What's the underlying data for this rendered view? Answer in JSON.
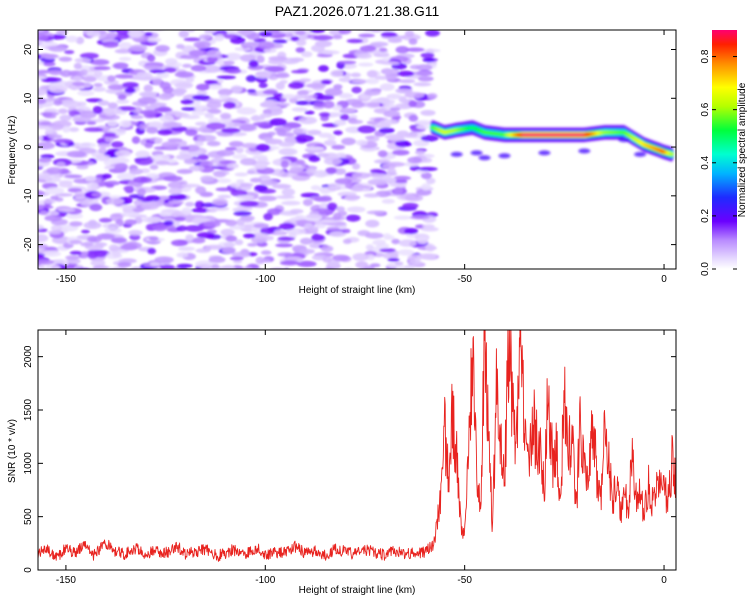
{
  "title": "PAZ1.2026.071.21.38.G11",
  "chart_data": [
    {
      "type": "heatmap",
      "title": "PAZ1.2026.071.21.38.G11",
      "xlabel": "Height of straight line (km)",
      "ylabel": "Frequency (Hz)",
      "xlim": [
        -157,
        3
      ],
      "ylim": [
        -25,
        24
      ],
      "xticks": [
        -150,
        -100,
        -50,
        0
      ],
      "yticks": [
        -20,
        -10,
        0,
        10,
        20
      ],
      "noise_region_x": [
        -157,
        -58
      ],
      "signal_ridge": {
        "x": [
          -58,
          -55,
          -52,
          -48,
          -45,
          -40,
          -35,
          -30,
          -25,
          -20,
          -15,
          -10,
          -5,
          0,
          2
        ],
        "freq": [
          4,
          3,
          3.5,
          4,
          3,
          2.5,
          2.5,
          2.5,
          2.5,
          2.5,
          3,
          3,
          0.5,
          -1,
          -1.5
        ],
        "amplitude": [
          0.55,
          0.65,
          0.6,
          0.5,
          0.55,
          0.55,
          0.9,
          0.9,
          0.9,
          0.9,
          0.6,
          0.55,
          0.7,
          0.8,
          0.6
        ]
      },
      "colorbar": {
        "label": "Normalized spectral amplitude",
        "range": [
          0,
          0.9
        ],
        "ticks": [
          0.0,
          0.2,
          0.4,
          0.6,
          0.8
        ],
        "tick_labels": [
          "0.0",
          "0.2",
          "0.4",
          "0.6",
          "0.8"
        ]
      }
    },
    {
      "type": "line",
      "xlabel": "Height of straight line (km)",
      "ylabel": "SNR (10 * v/v)",
      "xlim": [
        -157,
        3
      ],
      "ylim": [
        0,
        2250
      ],
      "xticks": [
        -150,
        -100,
        -50,
        0
      ],
      "yticks": [
        0,
        500,
        1000,
        1500,
        2000
      ],
      "series": [
        {
          "name": "SNR",
          "color": "#e8231f",
          "x": [
            -157,
            -155,
            -152,
            -150,
            -148,
            -145,
            -143,
            -140,
            -138,
            -135,
            -132,
            -130,
            -128,
            -125,
            -122,
            -120,
            -118,
            -115,
            -112,
            -110,
            -108,
            -105,
            -102,
            -100,
            -98,
            -95,
            -92,
            -90,
            -88,
            -85,
            -82,
            -80,
            -78,
            -75,
            -72,
            -70,
            -68,
            -65,
            -62,
            -60,
            -58,
            -57,
            -56,
            -55,
            -54,
            -53,
            -52,
            -51,
            -50,
            -49,
            -48,
            -47,
            -46,
            -45,
            -44,
            -43,
            -42,
            -41,
            -40,
            -39,
            -38,
            -37,
            -36,
            -35,
            -34,
            -33,
            -32,
            -31,
            -30,
            -29,
            -28,
            -27,
            -26,
            -25,
            -24,
            -23,
            -22,
            -21,
            -20,
            -19,
            -18,
            -17,
            -16,
            -15,
            -14,
            -13,
            -12,
            -11,
            -10,
            -9,
            -8,
            -7,
            -6,
            -5,
            -4,
            -3,
            -2,
            -1,
            0,
            1,
            2,
            3
          ],
          "y": [
            150,
            190,
            120,
            200,
            160,
            230,
            140,
            260,
            170,
            150,
            210,
            130,
            180,
            160,
            220,
            140,
            170,
            200,
            130,
            160,
            190,
            150,
            210,
            140,
            170,
            160,
            230,
            150,
            180,
            140,
            200,
            170,
            150,
            190,
            160,
            140,
            180,
            150,
            170,
            160,
            240,
            420,
            700,
            1300,
            850,
            1500,
            1050,
            400,
            300,
            1100,
            2000,
            900,
            500,
            2150,
            1200,
            400,
            1700,
            1200,
            850,
            2150,
            1600,
            1100,
            2250,
            1300,
            900,
            1500,
            1200,
            1150,
            800,
            1700,
            1000,
            1100,
            750,
            1600,
            1200,
            1200,
            600,
            1400,
            1000,
            700,
            1350,
            950,
            620,
            1250,
            1050,
            650,
            750,
            580,
            700,
            600,
            1000,
            650,
            700,
            550,
            800,
            600,
            700,
            900,
            750,
            650,
            1000,
            800
          ]
        }
      ]
    }
  ]
}
